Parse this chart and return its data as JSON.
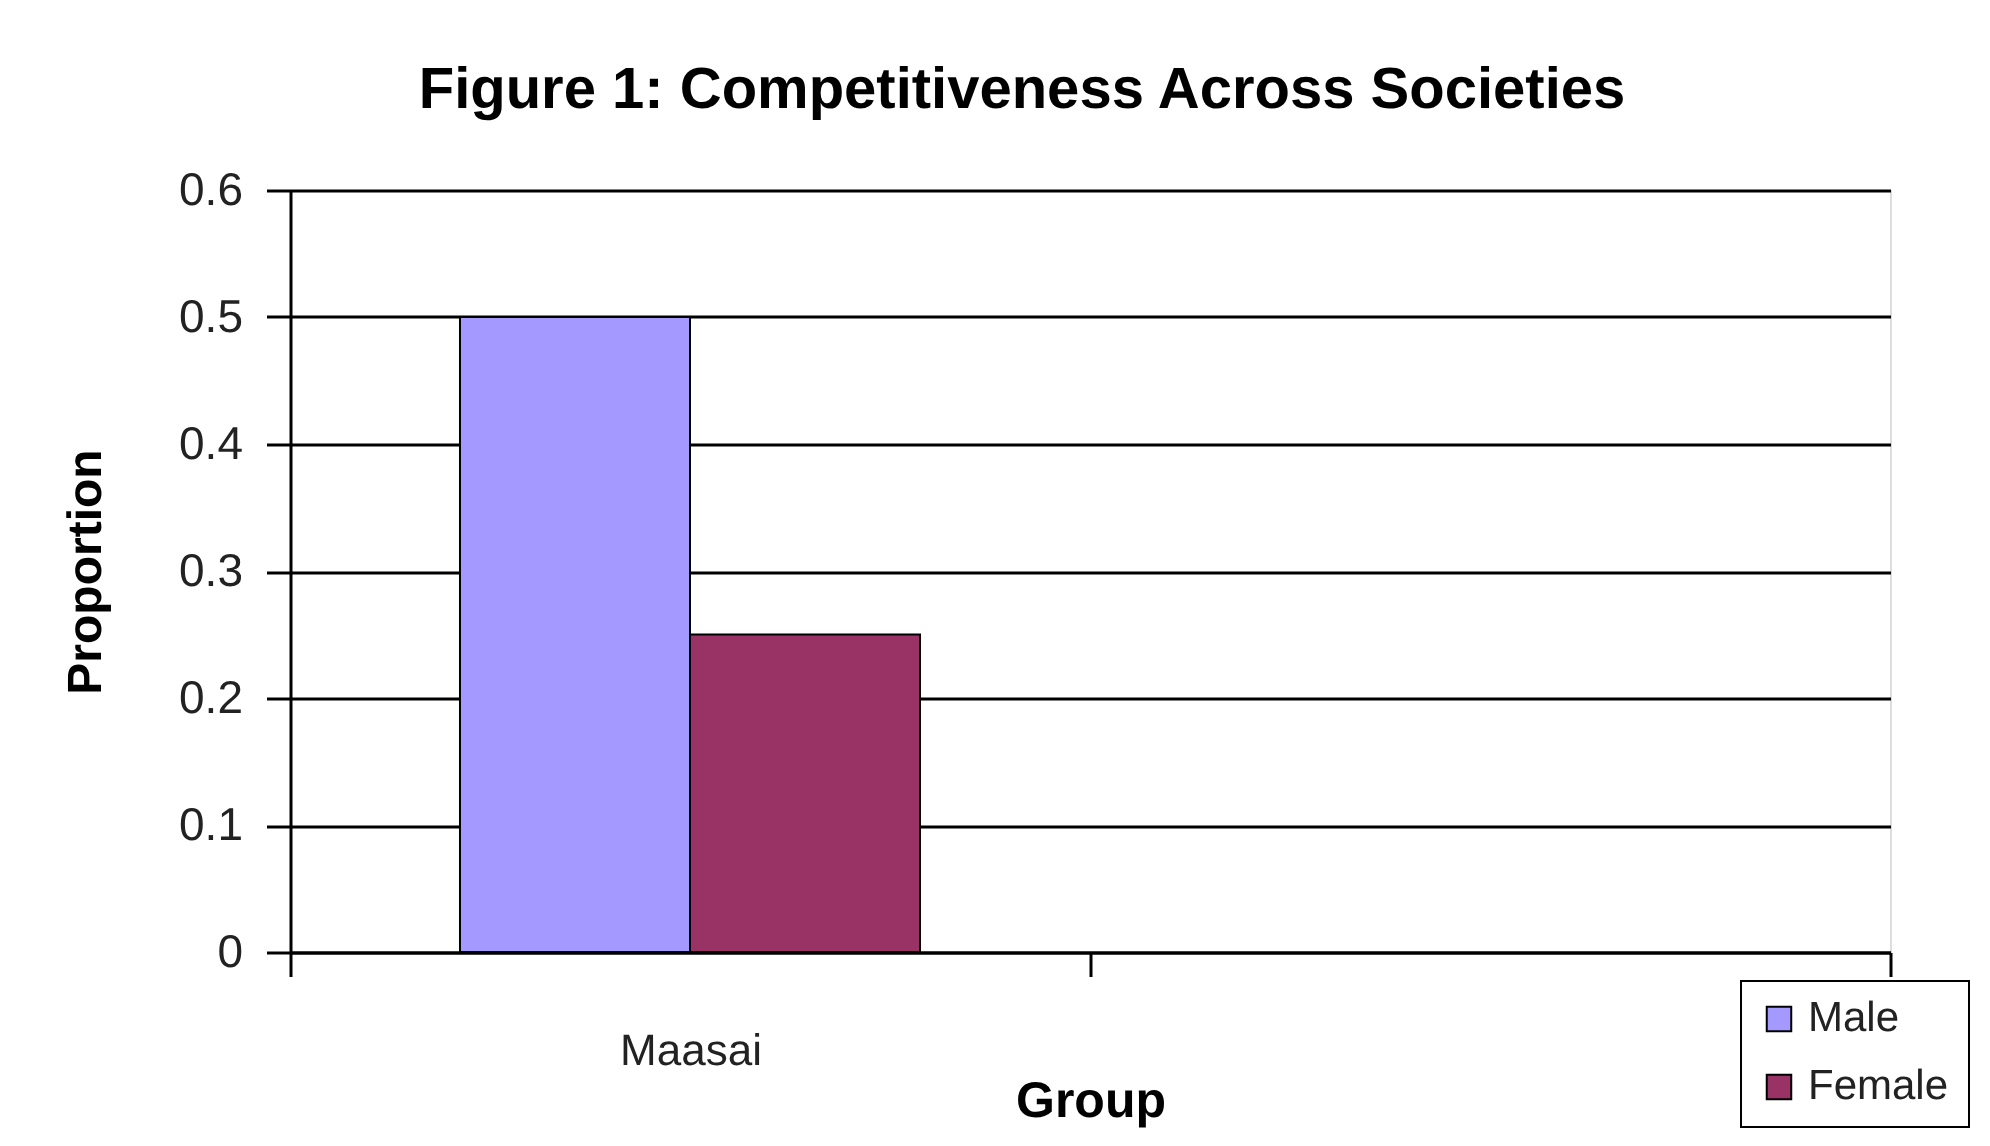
{
  "chart_data": {
    "type": "bar",
    "title": "Figure 1: Competitiveness Across Societies",
    "xlabel": "Group",
    "ylabel": "Proportion",
    "categories": [
      "Maasai",
      null
    ],
    "series": [
      {
        "name": "Male",
        "color": "#a499ff",
        "values": [
          0.5,
          null
        ]
      },
      {
        "name": "Female",
        "color": "#993366",
        "values": [
          0.25,
          null
        ]
      }
    ],
    "ylim": [
      0,
      0.6
    ],
    "yticks": [
      0,
      0.1,
      0.2,
      0.3,
      0.4,
      0.5,
      0.6
    ],
    "grid": "y",
    "legend": "bottom right"
  }
}
